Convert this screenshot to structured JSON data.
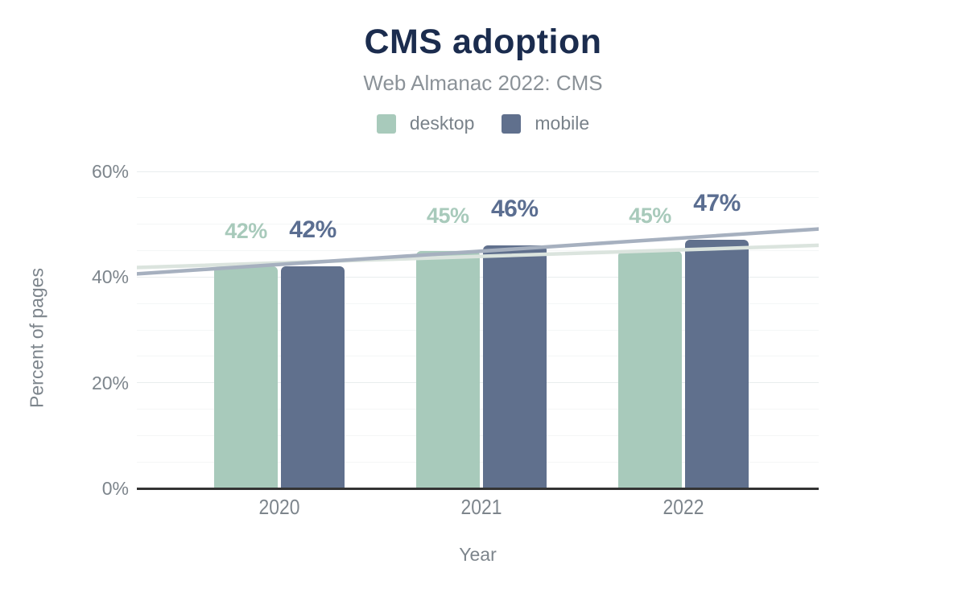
{
  "header": {
    "title": "CMS adoption",
    "subtitle": "Web Almanac 2022: CMS"
  },
  "legend": {
    "items": [
      {
        "label": "desktop",
        "color": "#a8cabb"
      },
      {
        "label": "mobile",
        "color": "#60708d"
      }
    ]
  },
  "chart_data": {
    "type": "bar",
    "title": "CMS adoption",
    "subtitle": "Web Almanac 2022: CMS",
    "categories": [
      "2020",
      "2021",
      "2022"
    ],
    "series": [
      {
        "name": "desktop",
        "color": "#a8cabb",
        "label_color": "#a8cabb",
        "values": [
          42,
          45,
          45
        ]
      },
      {
        "name": "mobile",
        "color": "#60708d",
        "label_color": "#5b6e91",
        "values": [
          42,
          46,
          47
        ]
      }
    ],
    "value_suffix": "%",
    "trendlines": [
      {
        "series": "desktop",
        "color": "#dbe4de",
        "start_value": 41.8,
        "end_value": 46.0
      },
      {
        "series": "mobile",
        "color": "#a6b0bf",
        "start_value": 40.6,
        "end_value": 49.1
      }
    ],
    "xlabel": "Year",
    "ylabel": "Percent of pages",
    "ylim": [
      0,
      60
    ],
    "yticks": [
      0,
      20,
      40,
      60
    ],
    "ytick_suffix": "%",
    "grid": true,
    "grid_step": 5,
    "legend_position": "top"
  },
  "colors": {
    "title": "#1b2c4e",
    "subtitle": "#8b9298",
    "axis_text": "#7d858c",
    "legend_text": "#79828a",
    "axis_line": "#333333",
    "gridline_minor": "#f4f6f6",
    "gridline_major": "#e9edee",
    "background": "#ffffff"
  }
}
